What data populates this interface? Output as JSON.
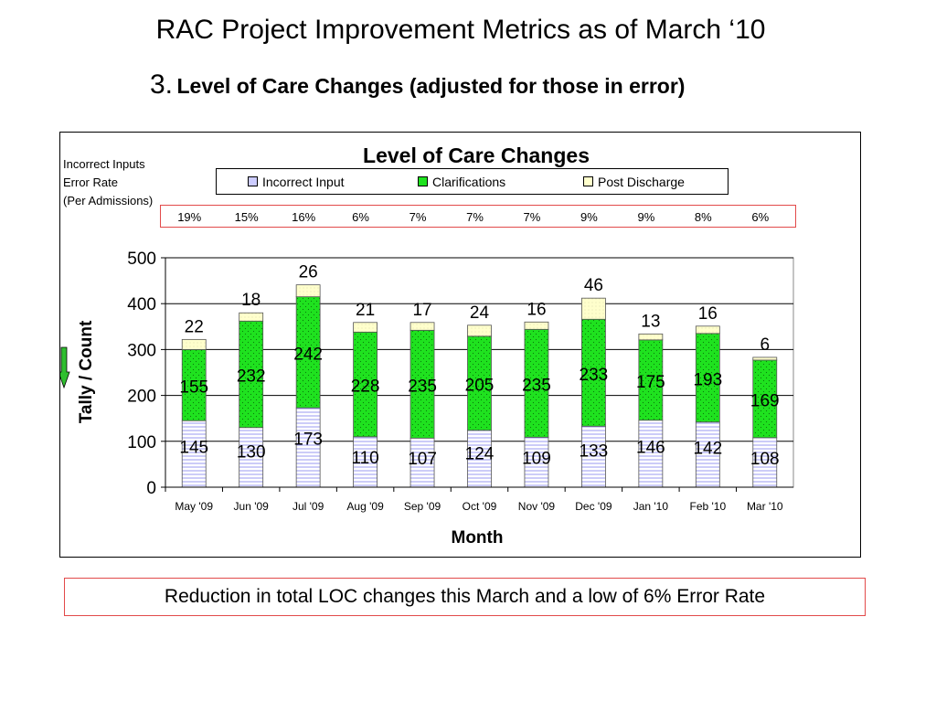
{
  "slide": {
    "title": "RAC Project Improvement Metrics as of March ‘10",
    "subtitle_number": "3.",
    "subtitle_text": "Level of Care Changes (adjusted for those in error)"
  },
  "rate_note": {
    "line1": "Incorrect Inputs",
    "line2": "Error Rate",
    "line3": "(Per Admissions)"
  },
  "error_rates": [
    "19%",
    "15%",
    "16%",
    "6%",
    "7%",
    "7%",
    "7%",
    "9%",
    "9%",
    "8%",
    "6%"
  ],
  "summary": "Reduction in total LOC changes this March and a low of 6% Error Rate",
  "colors": {
    "incorrect_input": "#ccccff",
    "clarifications": "#1fe21f",
    "post_discharge": "#ffffcc",
    "annotation_border": "#e24a4a",
    "arrow": "#2fbf2f"
  },
  "chart_data": {
    "type": "bar",
    "stacked": true,
    "title": "Level of Care Changes",
    "xlabel": "Month",
    "ylabel": "Tally / Count",
    "ylim": [
      0,
      500
    ],
    "yticks": [
      0,
      100,
      200,
      300,
      400,
      500
    ],
    "grid": true,
    "legend_position": "top",
    "categories": [
      "May '09",
      "Jun '09",
      "Jul '09",
      "Aug '09",
      "Sep '09",
      "Oct '09",
      "Nov '09",
      "Dec '09",
      "Jan '10",
      "Feb '10",
      "Mar '10"
    ],
    "series": [
      {
        "name": "Incorrect Input",
        "values": [
          145,
          130,
          173,
          110,
          107,
          124,
          109,
          133,
          146,
          142,
          108
        ]
      },
      {
        "name": "Clarifications",
        "values": [
          155,
          232,
          242,
          228,
          235,
          205,
          235,
          233,
          175,
          193,
          169
        ]
      },
      {
        "name": "Post Discharge",
        "values": [
          22,
          18,
          26,
          21,
          17,
          24,
          16,
          46,
          13,
          16,
          6
        ]
      }
    ]
  }
}
